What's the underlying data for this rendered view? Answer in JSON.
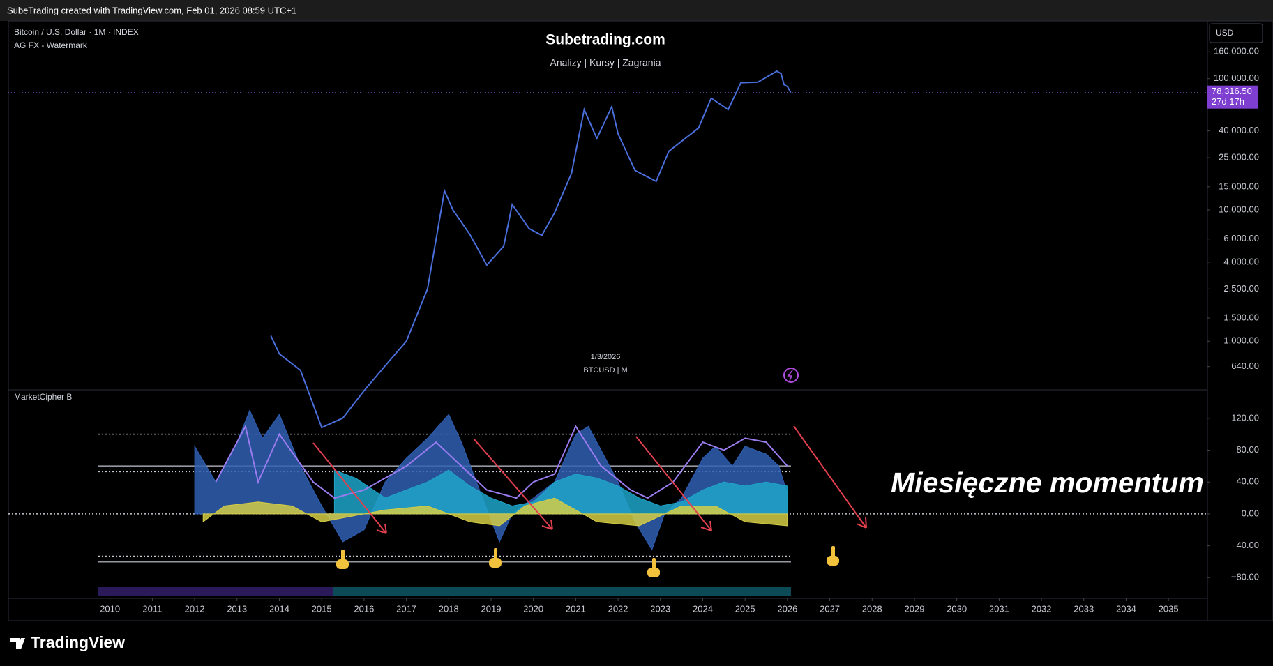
{
  "header": {
    "text": "SubeTrading created with TradingView.com, Feb 01, 2026 08:59 UTC+1"
  },
  "footer": {
    "brand": "TradingView"
  },
  "chart_data": [
    {
      "type": "line",
      "log_scale": true,
      "legend_title": "Bitcoin / U.S. Dollar · 1M · INDEX",
      "indicator": "AG FX - Watermark",
      "watermark_title": "Subetrading.com",
      "watermark_subtitle": "Analizy | Kursy | Zagrania",
      "watermark_date": "1/3/2026",
      "watermark_symbol": "BTCUSD | M",
      "currency": "USD",
      "last_price": {
        "value": 78316.5,
        "label": "78,316.50"
      },
      "countdown": "27d 17h",
      "xlim": [
        2007.6,
        2035.92
      ],
      "ylim": [
        426,
        275000
      ],
      "xticks": [
        2010,
        2011,
        2012,
        2013,
        2014,
        2015,
        2016,
        2017,
        2018,
        2019,
        2020,
        2021,
        2022,
        2023,
        2024,
        2025,
        2026,
        2027,
        2028,
        2029,
        2030,
        2031,
        2032,
        2033,
        2034,
        2035
      ],
      "yticks": [
        {
          "value": 160000,
          "label": "160,000.00"
        },
        {
          "value": 100000,
          "label": "100,000.00"
        },
        {
          "value": 40000,
          "label": "40,000.00"
        },
        {
          "value": 25000,
          "label": "25,000.00"
        },
        {
          "value": 15000,
          "label": "15,000.00"
        },
        {
          "value": 10000,
          "label": "10,000.00"
        },
        {
          "value": 6000,
          "label": "6,000.00"
        },
        {
          "value": 4000,
          "label": "4,000.00"
        },
        {
          "value": 2500,
          "label": "2,500.00"
        },
        {
          "value": 1500,
          "label": "1,500.00"
        },
        {
          "value": 1000,
          "label": "1,000.00"
        },
        {
          "value": 640,
          "label": "640.00"
        }
      ],
      "series": [
        {
          "name": "BTCUSD",
          "color": "#4a6fdc",
          "x": [
            2013.8,
            2014.0,
            2014.5,
            2015.0,
            2015.5,
            2016.0,
            2016.5,
            2017.0,
            2017.5,
            2017.9,
            2018.1,
            2018.5,
            2018.9,
            2019.3,
            2019.5,
            2019.9,
            2020.2,
            2020.5,
            2020.9,
            2021.2,
            2021.5,
            2021.85,
            2022.0,
            2022.4,
            2022.9,
            2023.2,
            2023.9,
            2024.2,
            2024.6,
            2024.9,
            2025.3,
            2025.75,
            2025.85,
            2025.92,
            2026.0,
            2026.08
          ],
          "values": [
            1100,
            800,
            600,
            220,
            260,
            420,
            650,
            1000,
            2500,
            14000,
            10000,
            6500,
            3800,
            5300,
            11000,
            7200,
            6400,
            9500,
            19000,
            58000,
            35000,
            61000,
            38000,
            20000,
            16500,
            28000,
            42000,
            71000,
            58000,
            93000,
            94000,
            114000,
            109000,
            90000,
            87000,
            78316.5
          ]
        }
      ]
    },
    {
      "type": "area",
      "title": "MarketCipher B",
      "annotation": "Miesięczne momentum",
      "xlim": [
        2007.6,
        2035.92
      ],
      "ylim": [
        -106,
        154
      ],
      "yticks": [
        {
          "value": 120,
          "label": "120.00"
        },
        {
          "value": 80,
          "label": "80.00"
        },
        {
          "value": 40,
          "label": "40.00"
        },
        {
          "value": 0,
          "label": "0.00"
        },
        {
          "value": -40,
          "label": "−40.00"
        },
        {
          "value": -80,
          "label": "−80.00"
        }
      ],
      "levels": [
        {
          "value": 100,
          "style": "dotted"
        },
        {
          "value": 60,
          "style": "solid"
        },
        {
          "value": 53,
          "style": "dotted"
        },
        {
          "value": 0,
          "style": "dotted"
        },
        {
          "value": -53,
          "style": "dotted"
        },
        {
          "value": -60,
          "style": "solid"
        }
      ],
      "series": [
        {
          "name": "Wave",
          "color": "#2f5fb3",
          "x": [
            2012.0,
            2012.5,
            2013.0,
            2013.3,
            2013.6,
            2014.0,
            2014.5,
            2015.0,
            2015.5,
            2016.0,
            2016.5,
            2017.0,
            2017.5,
            2018.0,
            2018.3,
            2018.8,
            2019.2,
            2019.5,
            2020.0,
            2020.5,
            2021.0,
            2021.3,
            2021.7,
            2022.0,
            2022.4,
            2022.8,
            2023.1,
            2023.5,
            2024.0,
            2024.3,
            2024.7,
            2025.0,
            2025.5,
            2025.8,
            2026.0
          ],
          "values": [
            85,
            40,
            90,
            130,
            95,
            125,
            60,
            10,
            -35,
            -20,
            40,
            70,
            95,
            125,
            90,
            20,
            -35,
            0,
            20,
            40,
            100,
            110,
            70,
            40,
            -10,
            -45,
            0,
            20,
            70,
            85,
            60,
            85,
            75,
            60,
            25
          ]
        },
        {
          "name": "Money Flow",
          "color": "#1fa4c9",
          "x": [
            2015.3,
            2015.8,
            2016.5,
            2017.0,
            2017.5,
            2018.0,
            2018.5,
            2019.0,
            2019.5,
            2020.0,
            2020.5,
            2021.0,
            2021.5,
            2022.0,
            2022.5,
            2023.0,
            2023.5,
            2024.0,
            2024.5,
            2025.0,
            2025.5,
            2026.0
          ],
          "values": [
            55,
            45,
            20,
            30,
            40,
            55,
            35,
            20,
            10,
            15,
            40,
            50,
            45,
            35,
            20,
            10,
            15,
            30,
            40,
            35,
            40,
            35
          ]
        },
        {
          "name": "Flow",
          "color": "#d4cc45",
          "x": [
            2012.2,
            2012.7,
            2013.5,
            2014.3,
            2015.0,
            2015.5,
            2016.5,
            2017.5,
            2018.5,
            2019.2,
            2019.8,
            2020.5,
            2021.5,
            2022.5,
            2023.5,
            2024.3,
            2025.0,
            2026.0
          ],
          "values": [
            -10,
            10,
            15,
            10,
            -10,
            -5,
            5,
            10,
            -10,
            -15,
            10,
            20,
            -10,
            -15,
            10,
            10,
            -10,
            -15
          ]
        },
        {
          "name": "Signal",
          "color": "#9b7cf0",
          "line": true,
          "x": [
            2012.5,
            2013.2,
            2013.5,
            2014.0,
            2014.8,
            2015.3,
            2016.0,
            2017.0,
            2017.7,
            2018.3,
            2018.9,
            2019.6,
            2020.0,
            2020.5,
            2021.0,
            2021.6,
            2022.3,
            2022.7,
            2023.3,
            2024.0,
            2024.5,
            2025.0,
            2025.5,
            2026.0
          ],
          "values": [
            40,
            110,
            40,
            100,
            40,
            20,
            30,
            60,
            90,
            60,
            30,
            20,
            40,
            50,
            110,
            60,
            30,
            20,
            40,
            90,
            80,
            95,
            90,
            60
          ]
        }
      ]
    }
  ]
}
